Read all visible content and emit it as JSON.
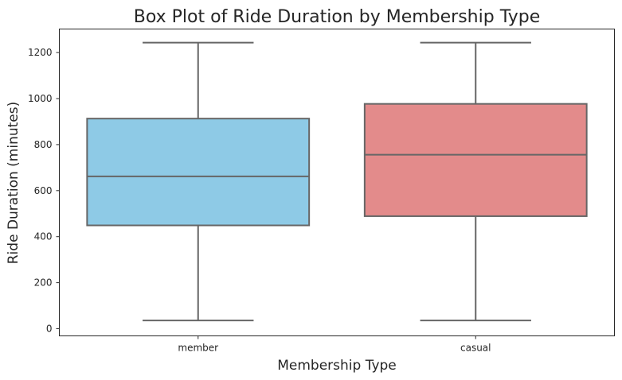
{
  "chart_data": {
    "type": "boxplot",
    "title": "Box Plot of Ride Duration by Membership Type",
    "xlabel": "Membership Type",
    "ylabel": "Ride Duration (minutes)",
    "ylim": [
      -25,
      1300
    ],
    "yticks": [
      0,
      200,
      400,
      600,
      800,
      1000,
      1200
    ],
    "grid": false,
    "categories": [
      "member",
      "casual"
    ],
    "boxes": [
      {
        "category": "member",
        "color": "#8ecae6",
        "whisker_low": 36,
        "q1": 449,
        "median": 662,
        "q3": 913,
        "whisker_high": 1243
      },
      {
        "category": "casual",
        "color": "#e38b8b",
        "whisker_low": 36,
        "q1": 489,
        "median": 756,
        "q3": 977,
        "whisker_high": 1243
      }
    ]
  }
}
